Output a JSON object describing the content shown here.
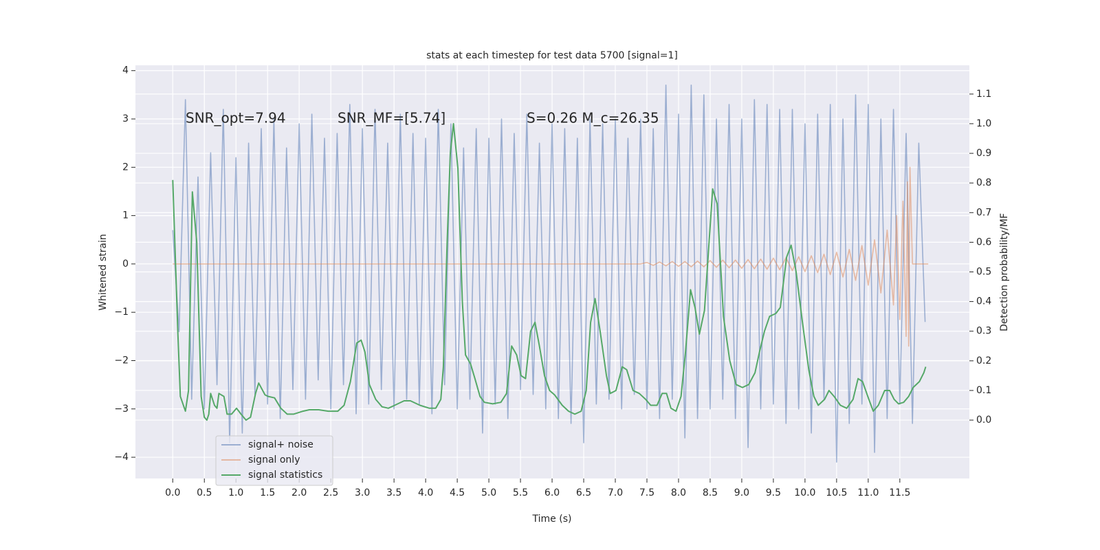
{
  "chart_data": {
    "type": "line",
    "title": "stats at each timestep for test data 5700 [signal=1]",
    "xlabel": "Time (s)",
    "ylabel": "Whitened strain",
    "y2label": "Detection probability/MF",
    "annotations": [
      "SNR_opt=7.94",
      "SNR_MF=[5.74]",
      "S=0.26   M_c=26.35"
    ],
    "xlim": [
      -0.59,
      12.6
    ],
    "ylim": [
      -4.44,
      4.11
    ],
    "y2lim": [
      -0.197,
      1.197
    ],
    "xticks": [
      {
        "value": 0,
        "label": "0.0"
      },
      {
        "value": 0.5,
        "label": "0.5"
      },
      {
        "value": 1,
        "label": "1.0"
      },
      {
        "value": 1.5,
        "label": "1.5"
      },
      {
        "value": 2,
        "label": "2.0"
      },
      {
        "value": 2.5,
        "label": "2.5"
      },
      {
        "value": 3,
        "label": "3.0"
      },
      {
        "value": 3.5,
        "label": "3.5"
      },
      {
        "value": 4,
        "label": "4.0"
      },
      {
        "value": 4.5,
        "label": "4.5"
      },
      {
        "value": 5,
        "label": "5.0"
      },
      {
        "value": 5.5,
        "label": "5.5"
      },
      {
        "value": 6,
        "label": "6.0"
      },
      {
        "value": 6.5,
        "label": "6.5"
      },
      {
        "value": 7,
        "label": "7.0"
      },
      {
        "value": 7.5,
        "label": "7.5"
      },
      {
        "value": 8,
        "label": "8.0"
      },
      {
        "value": 8.5,
        "label": "8.5"
      },
      {
        "value": 9,
        "label": "9.0"
      },
      {
        "value": 9.5,
        "label": "9.5"
      },
      {
        "value": 10,
        "label": "10.0"
      },
      {
        "value": 10.5,
        "label": "10.5"
      },
      {
        "value": 11,
        "label": "11.0"
      },
      {
        "value": 11.5,
        "label": "11.5"
      }
    ],
    "yticks": [
      {
        "value": -4,
        "label": "−4"
      },
      {
        "value": -3,
        "label": "−3"
      },
      {
        "value": -2,
        "label": "−2"
      },
      {
        "value": -1,
        "label": "−1"
      },
      0,
      1,
      2,
      3,
      4
    ],
    "y2ticks": [
      {
        "value": 0,
        "label": "0.0"
      },
      {
        "value": 0.1,
        "label": "0.1"
      },
      {
        "value": 0.2,
        "label": "0.2"
      },
      {
        "value": 0.3,
        "label": "0.3"
      },
      {
        "value": 0.4,
        "label": "0.4"
      },
      {
        "value": 0.5,
        "label": "0.5"
      },
      {
        "value": 0.6,
        "label": "0.6"
      },
      {
        "value": 0.7,
        "label": "0.7"
      },
      {
        "value": 0.8,
        "label": "0.8"
      },
      {
        "value": 0.9,
        "label": "0.9"
      },
      {
        "value": 1,
        "label": "1.0"
      },
      {
        "value": 1.1,
        "label": "1.1"
      }
    ],
    "grid": true,
    "legend": "lower left",
    "series": [
      {
        "name": "signal+ noise",
        "color": "#4c72b0",
        "x": [
          0,
          0.1,
          0.2,
          0.3,
          0.4,
          0.5,
          0.6,
          0.7,
          0.8,
          0.9,
          1,
          1.1,
          1.2,
          1.3,
          1.4,
          1.5,
          1.6,
          1.7,
          1.8,
          1.9,
          2,
          2.1,
          2.2,
          2.3,
          2.4,
          2.5,
          2.6,
          2.7,
          2.8,
          2.9,
          3,
          3.1,
          3.2,
          3.3,
          3.4,
          3.5,
          3.6,
          3.7,
          3.8,
          3.9,
          4,
          4.1,
          4.2,
          4.3,
          4.4,
          4.5,
          4.6,
          4.7,
          4.8,
          4.9,
          5,
          5.1,
          5.2,
          5.3,
          5.4,
          5.5,
          5.6,
          5.7,
          5.8,
          5.9,
          6,
          6.1,
          6.2,
          6.3,
          6.4,
          6.5,
          6.6,
          6.7,
          6.8,
          6.9,
          7,
          7.1,
          7.2,
          7.3,
          7.4,
          7.5,
          7.6,
          7.7,
          7.8,
          7.9,
          8,
          8.1,
          8.2,
          8.3,
          8.4,
          8.5,
          8.6,
          8.7,
          8.8,
          8.9,
          9,
          9.1,
          9.2,
          9.3,
          9.4,
          9.5,
          9.6,
          9.7,
          9.8,
          9.9,
          10,
          10.1,
          10.2,
          10.3,
          10.4,
          10.5,
          10.6,
          10.7,
          10.8,
          10.9,
          11,
          11.1,
          11.2,
          11.3,
          11.4,
          11.5,
          11.6,
          11.7,
          11.8,
          11.9
        ],
        "values": [
          0.7,
          -1.4,
          3.4,
          -2.8,
          1.8,
          -3.0,
          2.3,
          -2.5,
          3.2,
          -3.7,
          2.2,
          -3.5,
          2.5,
          -2.7,
          2.8,
          -2.9,
          3.0,
          -3.2,
          2.4,
          -2.6,
          2.9,
          -2.8,
          3.1,
          -2.4,
          2.6,
          -3.0,
          2.7,
          -2.5,
          3.3,
          -3.1,
          2.8,
          -2.9,
          3.2,
          -2.6,
          2.5,
          -3.0,
          3.1,
          -2.8,
          2.7,
          -2.9,
          2.6,
          -3.1,
          3.2,
          -2.5,
          2.9,
          -3.0,
          2.4,
          -2.8,
          2.8,
          -3.5,
          2.6,
          -2.9,
          3.0,
          -3.2,
          2.7,
          -2.6,
          3.1,
          -2.7,
          2.5,
          -3.0,
          2.9,
          -3.2,
          2.8,
          -3.3,
          2.6,
          -3.7,
          3.0,
          -2.9,
          2.9,
          -2.8,
          3.0,
          -3.0,
          2.6,
          -2.7,
          3.0,
          -3.0,
          2.8,
          -3.2,
          3.7,
          -2.8,
          3.1,
          -3.6,
          3.7,
          -3.2,
          3.5,
          -3.0,
          3.0,
          -2.8,
          3.3,
          -3.2,
          3.0,
          -3.8,
          3.4,
          -3.0,
          3.3,
          -2.9,
          3.2,
          -3.3,
          3.2,
          -3.0,
          2.9,
          -3.5,
          3.1,
          -2.8,
          3.3,
          -4.1,
          3.0,
          -3.3,
          3.5,
          -2.9,
          3.3,
          -3.9,
          3.0,
          -3.2,
          3.2,
          -2.9,
          2.7,
          -3.3,
          2.5,
          -1.2
        ]
      },
      {
        "name": "signal only",
        "color": "#dd8452",
        "x": [
          0,
          7.4,
          7.5,
          7.6,
          7.7,
          7.8,
          7.9,
          8,
          8.1,
          8.2,
          8.3,
          8.4,
          8.5,
          8.6,
          8.7,
          8.8,
          8.9,
          9,
          9.1,
          9.2,
          9.3,
          9.4,
          9.5,
          9.6,
          9.7,
          9.8,
          9.9,
          10,
          10.1,
          10.2,
          10.3,
          10.4,
          10.5,
          10.6,
          10.7,
          10.8,
          10.9,
          11,
          11.1,
          11.2,
          11.3,
          11.4,
          11.45,
          11.5,
          11.55,
          11.6,
          11.62,
          11.64,
          11.66,
          11.7,
          11.95
        ],
        "values": [
          0,
          0,
          0.03,
          -0.03,
          0.04,
          -0.04,
          0.05,
          -0.05,
          0.05,
          -0.06,
          0.06,
          -0.06,
          0.07,
          -0.07,
          0.08,
          -0.08,
          0.08,
          -0.09,
          0.09,
          -0.1,
          0.1,
          -0.11,
          0.12,
          -0.12,
          0.13,
          -0.14,
          0.15,
          -0.16,
          0.17,
          -0.18,
          0.2,
          -0.22,
          0.24,
          -0.27,
          0.3,
          -0.34,
          0.38,
          -0.44,
          0.5,
          -0.6,
          0.7,
          -0.85,
          1.0,
          -1.15,
          1.3,
          -1.5,
          1.7,
          -1.7,
          2.0,
          0,
          0
        ]
      },
      {
        "name": "signal statistics",
        "color": "#55a868",
        "axis": "y2",
        "x": [
          0,
          0.08,
          0.12,
          0.2,
          0.25,
          0.31,
          0.38,
          0.45,
          0.5,
          0.54,
          0.57,
          0.6,
          0.66,
          0.7,
          0.73,
          0.81,
          0.86,
          0.93,
          1.01,
          1.08,
          1.16,
          1.23,
          1.31,
          1.36,
          1.46,
          1.51,
          1.61,
          1.71,
          1.81,
          1.91,
          2.06,
          2.16,
          2.31,
          2.46,
          2.61,
          2.71,
          2.81,
          2.91,
          2.98,
          3.04,
          3.11,
          3.21,
          3.31,
          3.41,
          3.51,
          3.66,
          3.76,
          3.91,
          4.06,
          4.16,
          4.24,
          4.28,
          4.34,
          4.39,
          4.44,
          4.51,
          4.58,
          4.63,
          4.71,
          4.78,
          4.86,
          4.93,
          5.06,
          5.19,
          5.28,
          5.36,
          5.44,
          5.51,
          5.58,
          5.66,
          5.73,
          5.8,
          5.88,
          5.96,
          6.04,
          6.16,
          6.26,
          6.36,
          6.46,
          6.54,
          6.61,
          6.68,
          6.76,
          6.86,
          6.92,
          7.01,
          7.11,
          7.18,
          7.28,
          7.38,
          7.48,
          7.56,
          7.66,
          7.74,
          7.81,
          7.88,
          7.96,
          8.04,
          8.11,
          8.19,
          8.26,
          8.33,
          8.41,
          8.54,
          8.61,
          8.71,
          8.81,
          8.91,
          9.01,
          9.11,
          9.21,
          9.28,
          9.36,
          9.44,
          9.54,
          9.61,
          9.71,
          9.78,
          9.86,
          9.96,
          10.06,
          10.14,
          10.21,
          10.31,
          10.38,
          10.46,
          10.56,
          10.66,
          10.76,
          10.84,
          10.91,
          11.01,
          11.08,
          11.16,
          11.26,
          11.34,
          11.41,
          11.48,
          11.56,
          11.64,
          11.71,
          11.81,
          11.88,
          11.91
        ],
        "values": [
          0.81,
          0.3,
          0.08,
          0.03,
          0.1,
          0.77,
          0.6,
          0.08,
          0.01,
          0.0,
          0.02,
          0.09,
          0.05,
          0.04,
          0.09,
          0.08,
          0.02,
          0.02,
          0.04,
          0.02,
          0.0,
          0.01,
          0.09,
          0.125,
          0.085,
          0.08,
          0.075,
          0.04,
          0.02,
          0.02,
          0.03,
          0.035,
          0.035,
          0.03,
          0.03,
          0.05,
          0.13,
          0.26,
          0.27,
          0.23,
          0.12,
          0.07,
          0.045,
          0.04,
          0.05,
          0.065,
          0.065,
          0.05,
          0.04,
          0.04,
          0.07,
          0.18,
          0.6,
          0.9,
          1.0,
          0.85,
          0.4,
          0.22,
          0.19,
          0.14,
          0.08,
          0.06,
          0.055,
          0.06,
          0.09,
          0.25,
          0.22,
          0.15,
          0.14,
          0.3,
          0.33,
          0.25,
          0.15,
          0.1,
          0.085,
          0.05,
          0.03,
          0.02,
          0.03,
          0.1,
          0.33,
          0.41,
          0.3,
          0.15,
          0.09,
          0.1,
          0.18,
          0.17,
          0.1,
          0.09,
          0.07,
          0.05,
          0.05,
          0.09,
          0.09,
          0.04,
          0.03,
          0.08,
          0.23,
          0.44,
          0.38,
          0.29,
          0.37,
          0.78,
          0.73,
          0.35,
          0.2,
          0.12,
          0.11,
          0.12,
          0.16,
          0.23,
          0.3,
          0.35,
          0.36,
          0.38,
          0.55,
          0.59,
          0.5,
          0.33,
          0.17,
          0.08,
          0.05,
          0.07,
          0.1,
          0.08,
          0.05,
          0.04,
          0.07,
          0.14,
          0.13,
          0.07,
          0.03,
          0.05,
          0.1,
          0.1,
          0.07,
          0.055,
          0.06,
          0.08,
          0.11,
          0.13,
          0.16,
          0.18
        ]
      }
    ]
  }
}
